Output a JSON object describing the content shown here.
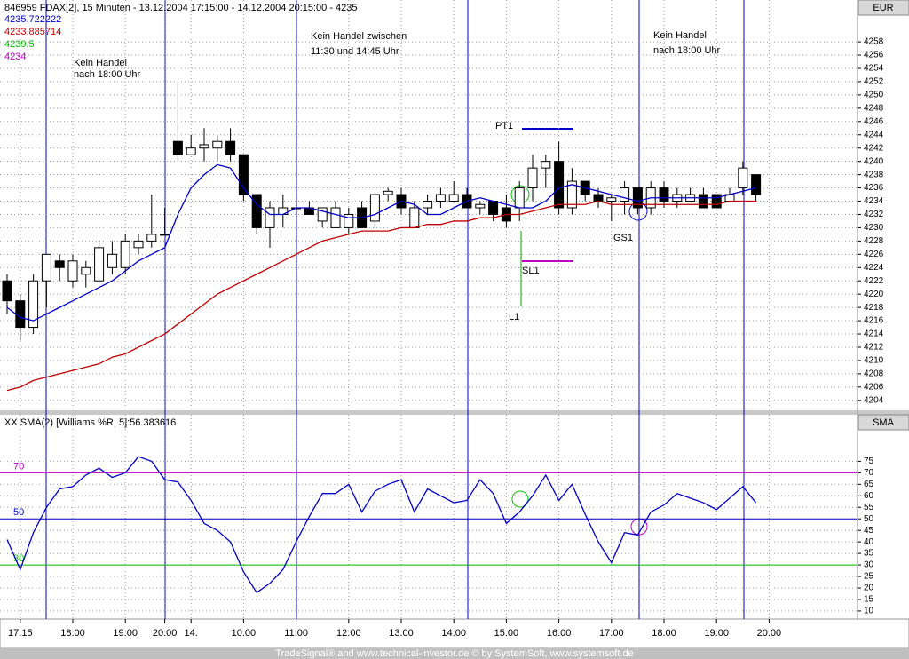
{
  "chart_data": [
    {
      "type": "candlestick",
      "title": "846959  FDAX[2], 15 Minuten - 13.12.2004 17:15:00 - 14.12.2004 20:15:00 - 4235",
      "axis_unit": "EUR",
      "categories": [
        null,
        "17:15",
        null,
        null,
        null,
        "18:00",
        null,
        null,
        null,
        "19:00",
        null,
        null,
        "20:00",
        null,
        "14.",
        null,
        null,
        null,
        "10:00",
        null,
        null,
        null,
        "11:00",
        null,
        null,
        null,
        "12:00",
        null,
        null,
        null,
        "13:00",
        null,
        null,
        null,
        "14:00",
        null,
        null,
        null,
        "15:00",
        null,
        null,
        null,
        "16:00",
        null,
        null,
        null,
        "17:00",
        null,
        null,
        null,
        "18:00",
        null,
        null,
        null,
        "19:00",
        null,
        null,
        null,
        "20:00"
      ],
      "open": [
        4222,
        4219,
        4215,
        4222,
        4225,
        4222,
        4223,
        4222,
        4224,
        4224,
        4227,
        4228,
        4229,
        4243,
        4241,
        4242,
        4242,
        4243,
        4241,
        4235,
        4230,
        4232,
        4233,
        4233,
        4231,
        4230,
        4230,
        4233,
        4231,
        4235,
        4235,
        4230,
        4233,
        4234,
        4234,
        4235,
        4233,
        4234,
        4233,
        4233,
        4236,
        4239,
        4240,
        4233,
        4237,
        4235,
        4234,
        4234,
        4236,
        4233,
        4236,
        4234,
        4234,
        4235,
        4235,
        4234,
        4236,
        4238,
        null
      ],
      "high": [
        4223,
        4220,
        4223,
        4226,
        4226,
        4226,
        4225,
        4228,
        4228,
        4229,
        4229,
        4235,
        4233,
        4252,
        4244,
        4245,
        4244,
        4245,
        4241,
        4235,
        4234,
        4235,
        4234,
        4234,
        4233,
        4234,
        4233,
        4234,
        4235,
        4236,
        4236,
        4234,
        4235,
        4236,
        4237,
        4236,
        4234,
        4234,
        4235,
        4237,
        4241,
        4241,
        4243,
        4239,
        4237,
        4236,
        4235,
        4237,
        4236,
        4237,
        4237,
        4236,
        4236,
        4236,
        4235,
        4236,
        4240,
        4238,
        null
      ],
      "low": [
        4217,
        4213,
        4214,
        4218,
        4222,
        4221,
        4221,
        4222,
        4223,
        4223,
        4226,
        4227,
        4229,
        4240,
        4241,
        4240,
        4240,
        4240,
        4234,
        4229,
        4227,
        4230,
        4232,
        4232,
        4230,
        4230,
        4229,
        4230,
        4230,
        4234,
        4232,
        4230,
        4232,
        4233,
        4234,
        4233,
        4232,
        4231,
        4230,
        4231,
        4234,
        4236,
        4232,
        4232,
        4234,
        4233,
        4231,
        4232,
        4232,
        4232,
        4233,
        4233,
        4234,
        4233,
        4233,
        4234,
        4235,
        4234,
        null
      ],
      "close": [
        4219,
        4215,
        4222,
        4226,
        4224,
        4225,
        4224,
        4227,
        4226,
        4228,
        4228,
        4229,
        4229,
        4241,
        4242,
        4242.5,
        4243,
        4241,
        4235,
        4230,
        4233,
        4233,
        4233,
        4232,
        4233,
        4233,
        4232,
        4230,
        4235,
        4235.5,
        4233,
        4233,
        4234,
        4235,
        4235,
        4233,
        4233.5,
        4232,
        4231,
        4236,
        4239,
        4240,
        4233,
        4237,
        4235,
        4234,
        4234.5,
        4236,
        4233,
        4236,
        4234,
        4235,
        4235,
        4233,
        4233,
        4235,
        4239,
        4235,
        null
      ],
      "series": [
        {
          "name": "4235.722222",
          "color": "#0000c8",
          "values": [
            4218,
            4216.5,
            4216,
            4217,
            4218,
            4219,
            4220,
            4221,
            4222,
            4223.5,
            4225,
            4226,
            4227,
            4232,
            4236,
            4238,
            4239.5,
            4239,
            4236,
            4233.5,
            4232,
            4232,
            4233,
            4233,
            4232.5,
            4232,
            4231.5,
            4231.5,
            4232,
            4233,
            4234,
            4233.5,
            4232,
            4232,
            4233,
            4234,
            4234.5,
            4234,
            4233.5,
            4233,
            4233,
            4234,
            4236,
            4236.5,
            4236,
            4235.5,
            4235,
            4234.5,
            4234,
            4234.5,
            4234.5,
            4234.5,
            4234.5,
            4234.5,
            4234.5,
            4235,
            4235.5,
            4236,
            null
          ]
        },
        {
          "name": "4233.885714",
          "color": "#c00000",
          "values": [
            4205.5,
            4206,
            4207,
            4207.5,
            4208,
            4208.5,
            4209,
            4209.5,
            4210.5,
            4211,
            4212,
            4213,
            4214,
            4215.5,
            4217,
            4218.5,
            4220,
            4221,
            4222,
            4223,
            4224,
            4225,
            4226,
            4227,
            4228,
            4228.5,
            4229,
            4229.5,
            4229.5,
            4229.5,
            4230,
            4230,
            4230.5,
            4230.5,
            4231,
            4231,
            4231.5,
            4231.5,
            4232,
            4232,
            4232.5,
            4233,
            4233.5,
            4233.5,
            4233.5,
            4234,
            4233.5,
            4233.5,
            4233.5,
            4233.5,
            4233.5,
            4233.5,
            4233.5,
            4233.5,
            4233.5,
            4234,
            4234,
            4234,
            null
          ]
        }
      ],
      "extra_legend": [
        {
          "name": "4239.5",
          "color": "#00c000"
        },
        {
          "name": "4234",
          "color": "#c000c0"
        }
      ],
      "annotations": [
        "Kein Handel",
        "nach 18:00 Uhr",
        "Kein Handel zwischen",
        "11:30 und 14:45 Uhr",
        "Kein Handel",
        "nach 18:00 Uhr",
        "PT1",
        "SL1",
        "L1",
        "GS1"
      ],
      "ylim": [
        4202.5,
        4264.3
      ],
      "yticks": [
        4204,
        4206,
        4208,
        4210,
        4212,
        4214,
        4216,
        4218,
        4220,
        4222,
        4224,
        4226,
        4228,
        4230,
        4232,
        4234,
        4236,
        4238,
        4240,
        4242,
        4244,
        4246,
        4248,
        4250,
        4252,
        4254,
        4256,
        4258
      ],
      "grid": true
    },
    {
      "type": "line",
      "title": "XX SMA(2) [Williams %R, 5]:56.383616",
      "axis_unit": "SMA",
      "color": "#0000c8",
      "values": [
        41,
        28,
        44,
        55,
        63,
        64,
        69,
        72,
        68,
        70,
        77,
        75,
        67,
        66,
        58,
        48,
        45,
        40,
        27,
        18,
        22,
        28,
        40,
        51,
        61,
        61,
        65,
        53,
        62,
        65,
        67,
        53,
        63,
        60,
        57,
        58,
        67,
        61,
        48,
        53,
        60,
        69,
        58,
        65,
        52,
        40,
        31,
        44,
        43,
        53,
        56,
        61,
        59,
        57,
        54,
        59,
        64,
        57,
        null
      ],
      "levels": [
        {
          "value": 70,
          "label": "70",
          "color": "#c000c0"
        },
        {
          "value": 50,
          "label": "50",
          "color": "#0000c8"
        },
        {
          "value": 30,
          "label": "30",
          "color": "#00c000"
        }
      ],
      "ylim": [
        6.5,
        95.2
      ],
      "yticks": [
        10,
        15,
        20,
        25,
        30,
        35,
        40,
        45,
        50,
        55,
        60,
        65,
        70,
        75
      ],
      "grid": true
    }
  ],
  "footer": "TradeSignal® and www.technical-investor.de © by SystemSoft, www.systemsoft.de"
}
